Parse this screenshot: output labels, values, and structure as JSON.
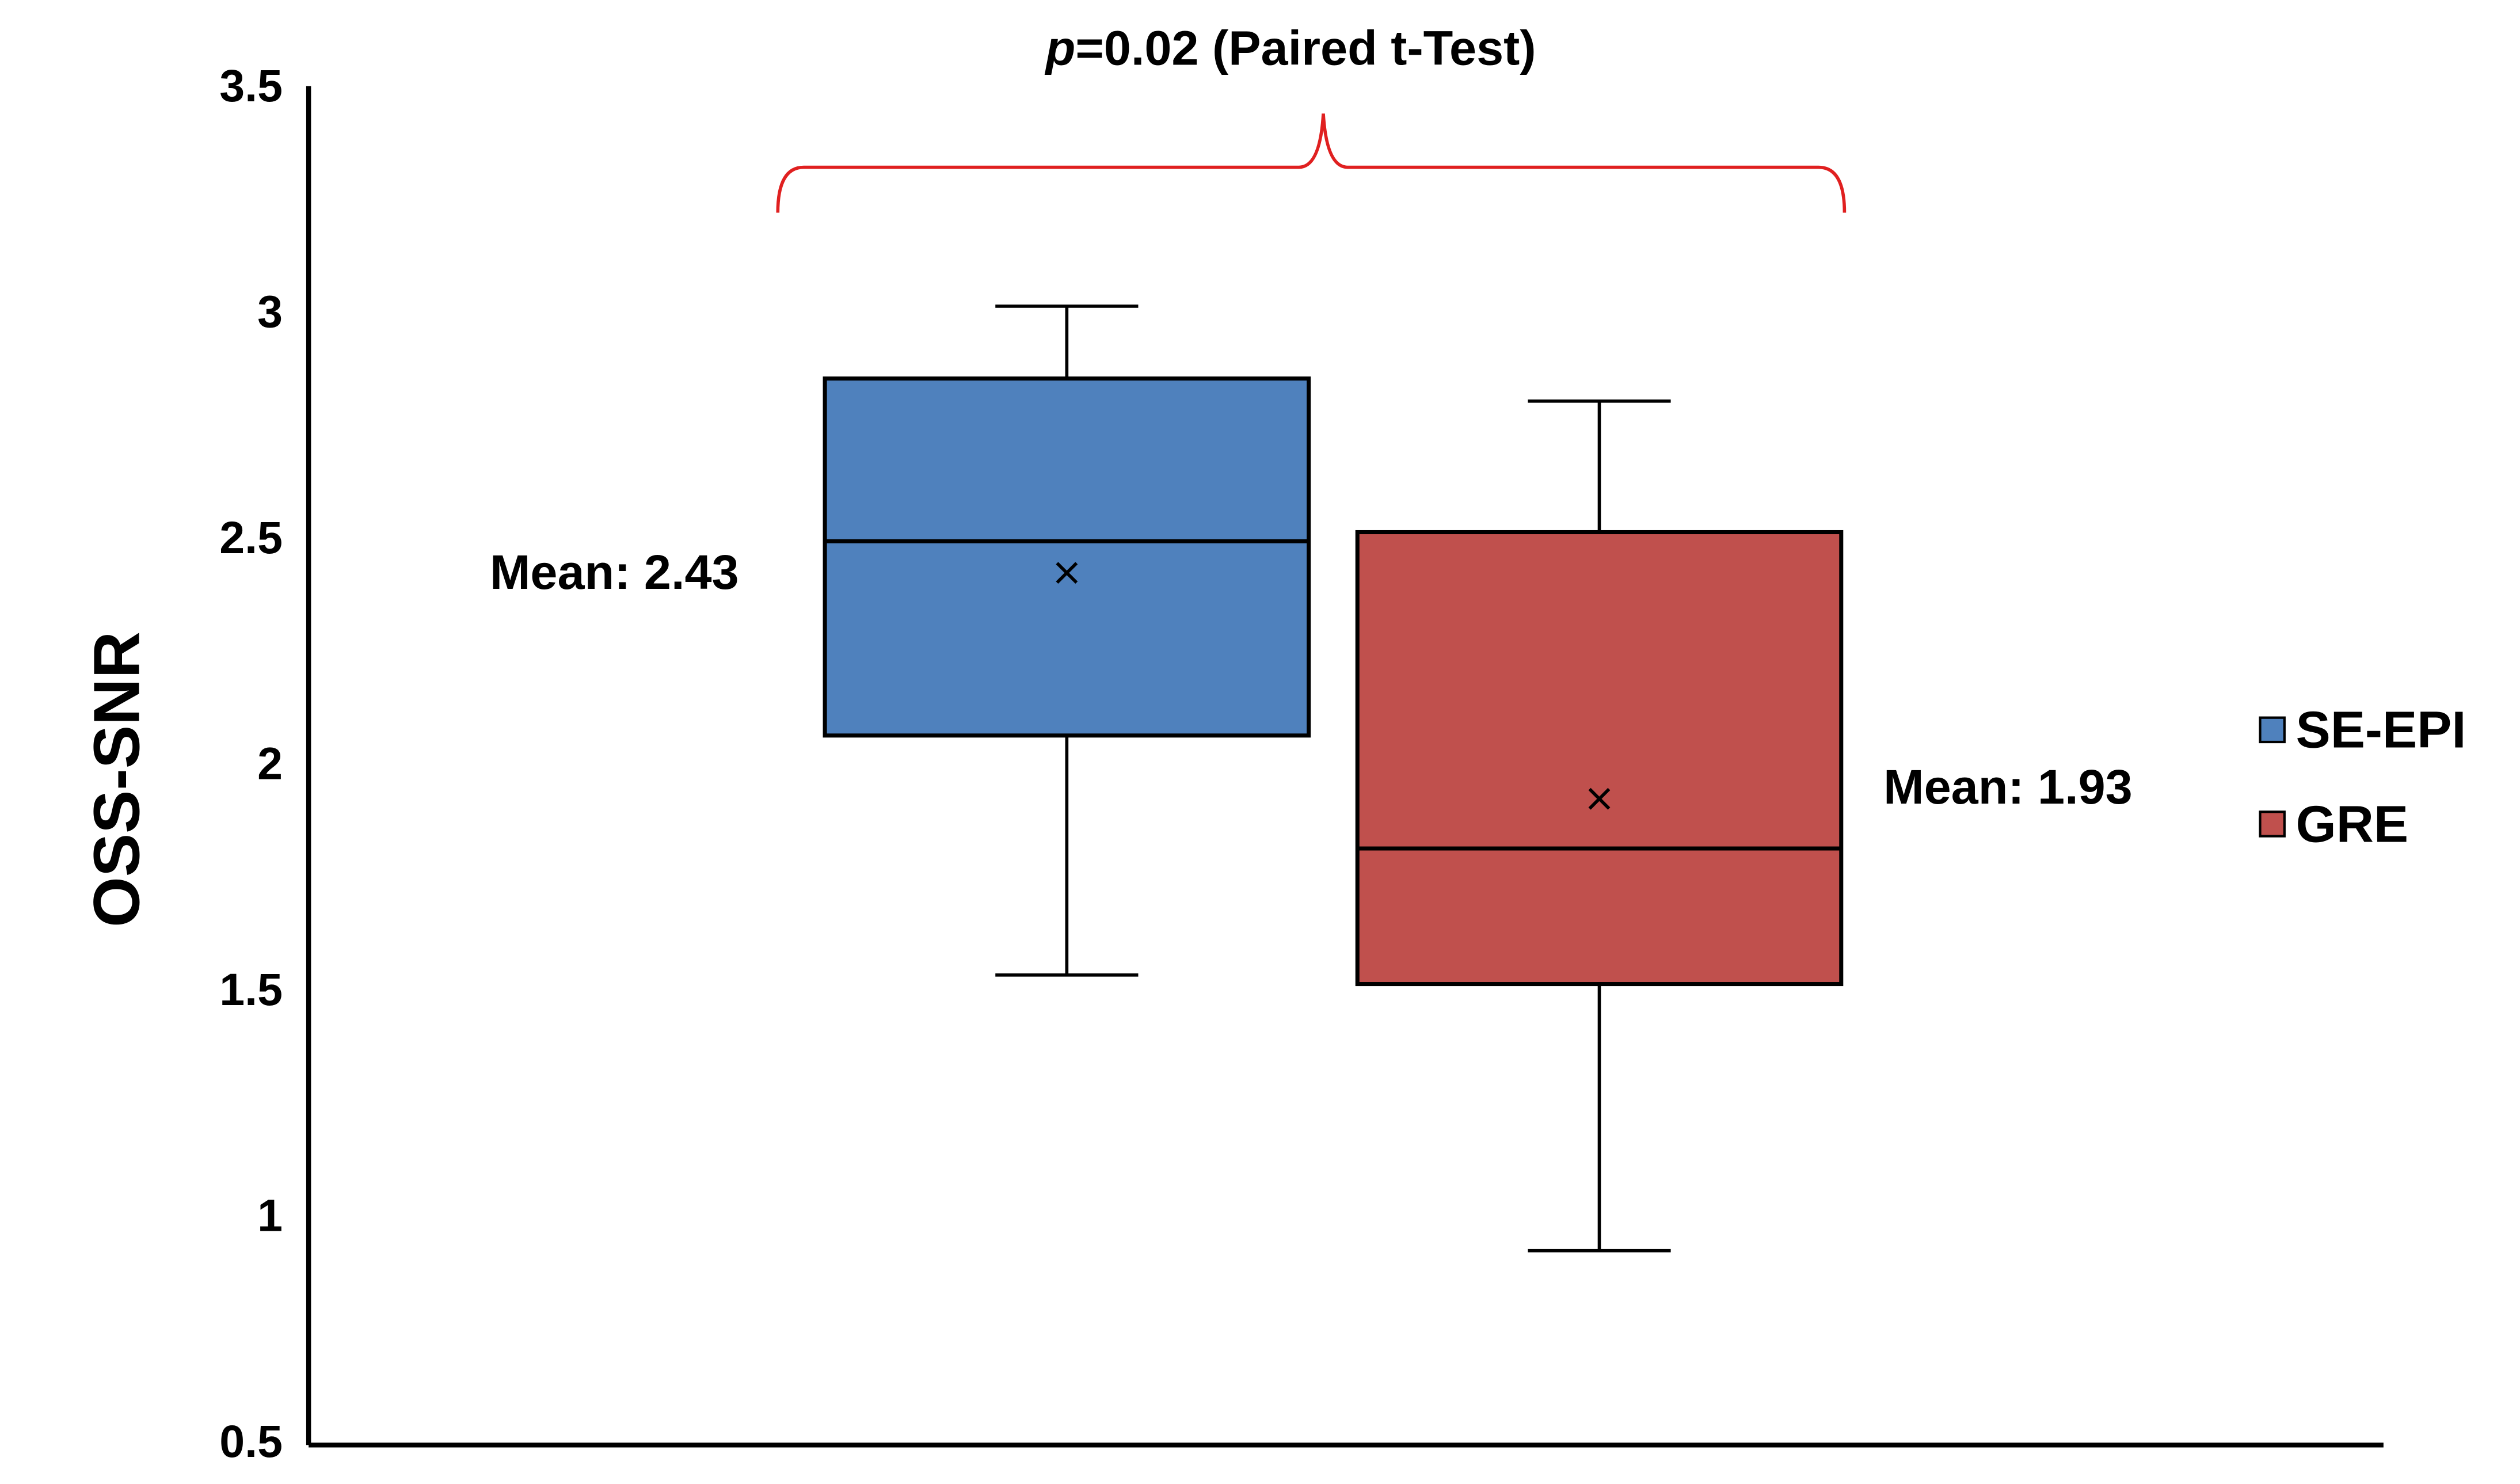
{
  "chart_data": {
    "type": "box",
    "y_label": "OSS-SNR",
    "annotation": {
      "italic": "p",
      "text": "=0.02 (Paired t-Test)"
    },
    "ylim": [
      0.5,
      3.5
    ],
    "yticks": [
      0.5,
      1,
      1.5,
      2,
      2.5,
      3,
      3.5
    ],
    "grid": false,
    "legend": "right",
    "series": [
      {
        "name": "SE-EPI",
        "color": "#4f81bd",
        "min": 1.54,
        "q1": 2.07,
        "median": 2.5,
        "q3": 2.86,
        "max": 3.02,
        "mean": 2.43,
        "mean_label": "Mean: 2.43"
      },
      {
        "name": "GRE",
        "color": "#c0504d",
        "min": 0.93,
        "q1": 1.52,
        "median": 1.82,
        "q3": 2.52,
        "max": 2.81,
        "mean": 1.93,
        "mean_label": "Mean: 1.93"
      }
    ]
  }
}
